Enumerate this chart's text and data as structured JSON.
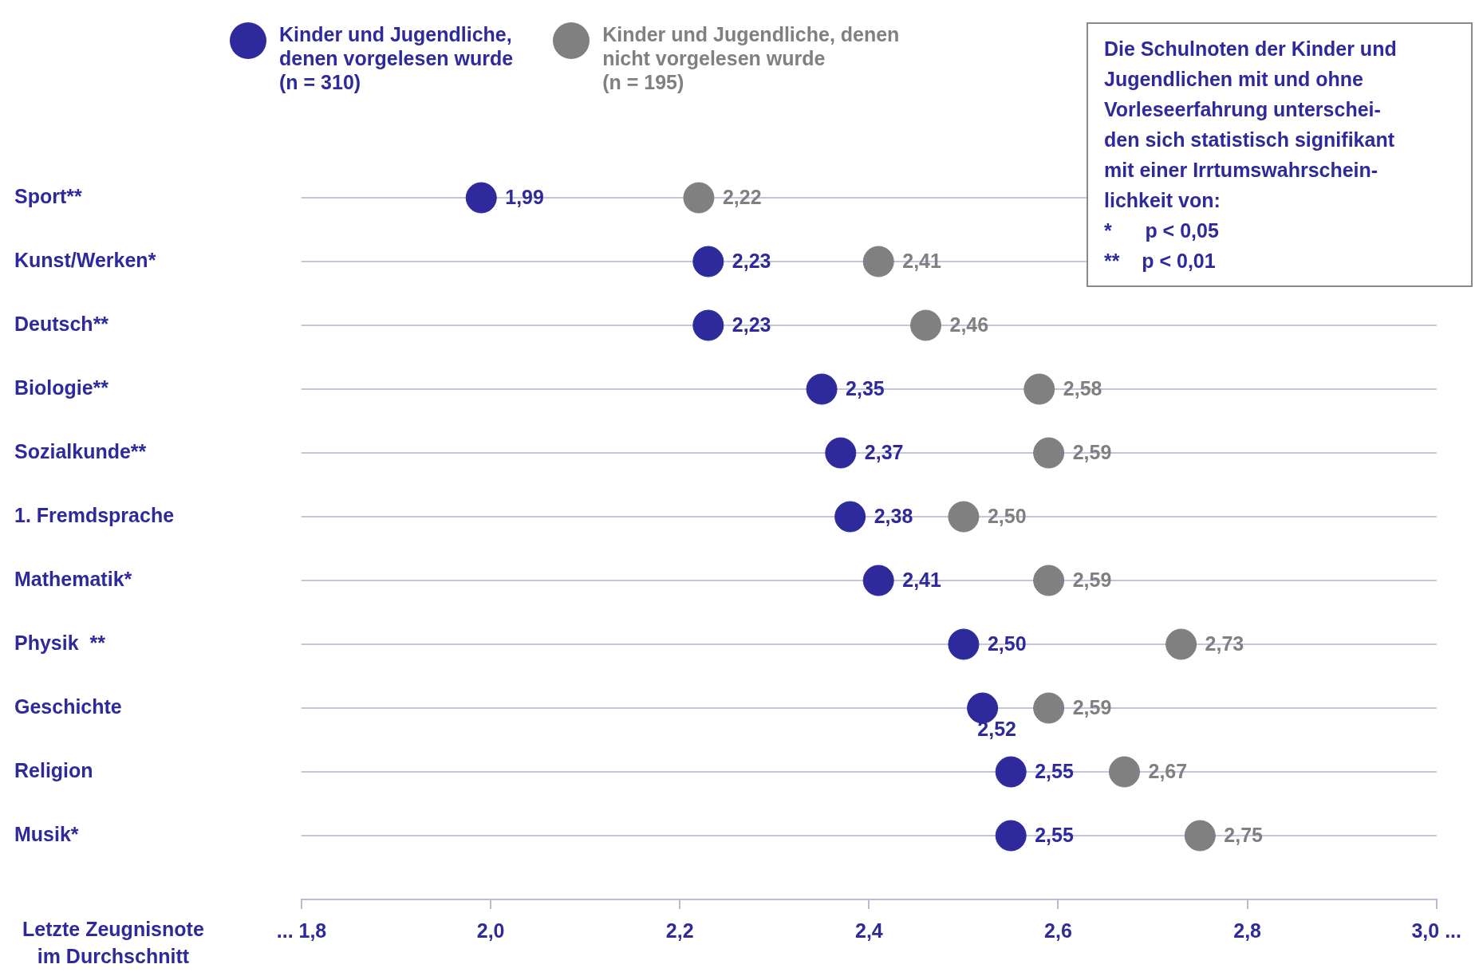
{
  "chart_data": {
    "type": "scatter",
    "orientation": "horizontal",
    "xlabel": "Letzte Zeugnisnote\nim Durchschnitt",
    "categories": [
      "Sport**",
      "Kunst/Werken*",
      "Deutsch**",
      "Biologie**",
      "Sozialkunde**",
      "1. Fremdsprache",
      "Mathematik*",
      "Physik  **",
      "Geschichte",
      "Religion",
      "Musik*"
    ],
    "series": [
      {
        "name": "Kinder und Jugendliche,\ndenen vorgelesen wurde\n(n = 310)",
        "color": "#2e2a9c",
        "values": [
          1.99,
          2.23,
          2.23,
          2.35,
          2.37,
          2.38,
          2.41,
          2.5,
          2.52,
          2.55,
          2.55
        ],
        "value_labels": [
          "1,99",
          "2,23",
          "2,23",
          "2,35",
          "2,37",
          "2,38",
          "2,41",
          "2,50",
          "2,52",
          "2,55",
          "2,55"
        ]
      },
      {
        "name": "Kinder und Jugendliche, denen\nnicht vorgelesen wurde\n(n = 195)",
        "color": "#808080",
        "values": [
          2.22,
          2.41,
          2.46,
          2.58,
          2.59,
          2.5,
          2.59,
          2.73,
          2.59,
          2.67,
          2.75
        ],
        "value_labels": [
          "2,22",
          "2,41",
          "2,46",
          "2,58",
          "2,59",
          "2,50",
          "2,59",
          "2,73",
          "2,59",
          "2,67",
          "2,75"
        ]
      }
    ],
    "xlim": [
      1.8,
      3.0
    ],
    "xticks": [
      {
        "value": 1.8,
        "label": "... 1,8"
      },
      {
        "value": 2.0,
        "label": "2,0"
      },
      {
        "value": 2.2,
        "label": "2,2"
      },
      {
        "value": 2.4,
        "label": "2,4"
      },
      {
        "value": 2.6,
        "label": "2,6"
      },
      {
        "value": 2.8,
        "label": "2,8"
      },
      {
        "value": 3.0,
        "label": "3,0 ..."
      }
    ],
    "grid": "y",
    "legend": "top",
    "marker": "circle",
    "annotations": [
      "Die Schulnoten der Kinder und\nJugendlichen mit und ohne\nVorleseerfahrung unterschei-\nden sich statistisch signifikant\nmit einer Irrtumswahrschein-\nlichkeit von:\n*      p < 0,05\n**    p < 0,01"
    ]
  }
}
